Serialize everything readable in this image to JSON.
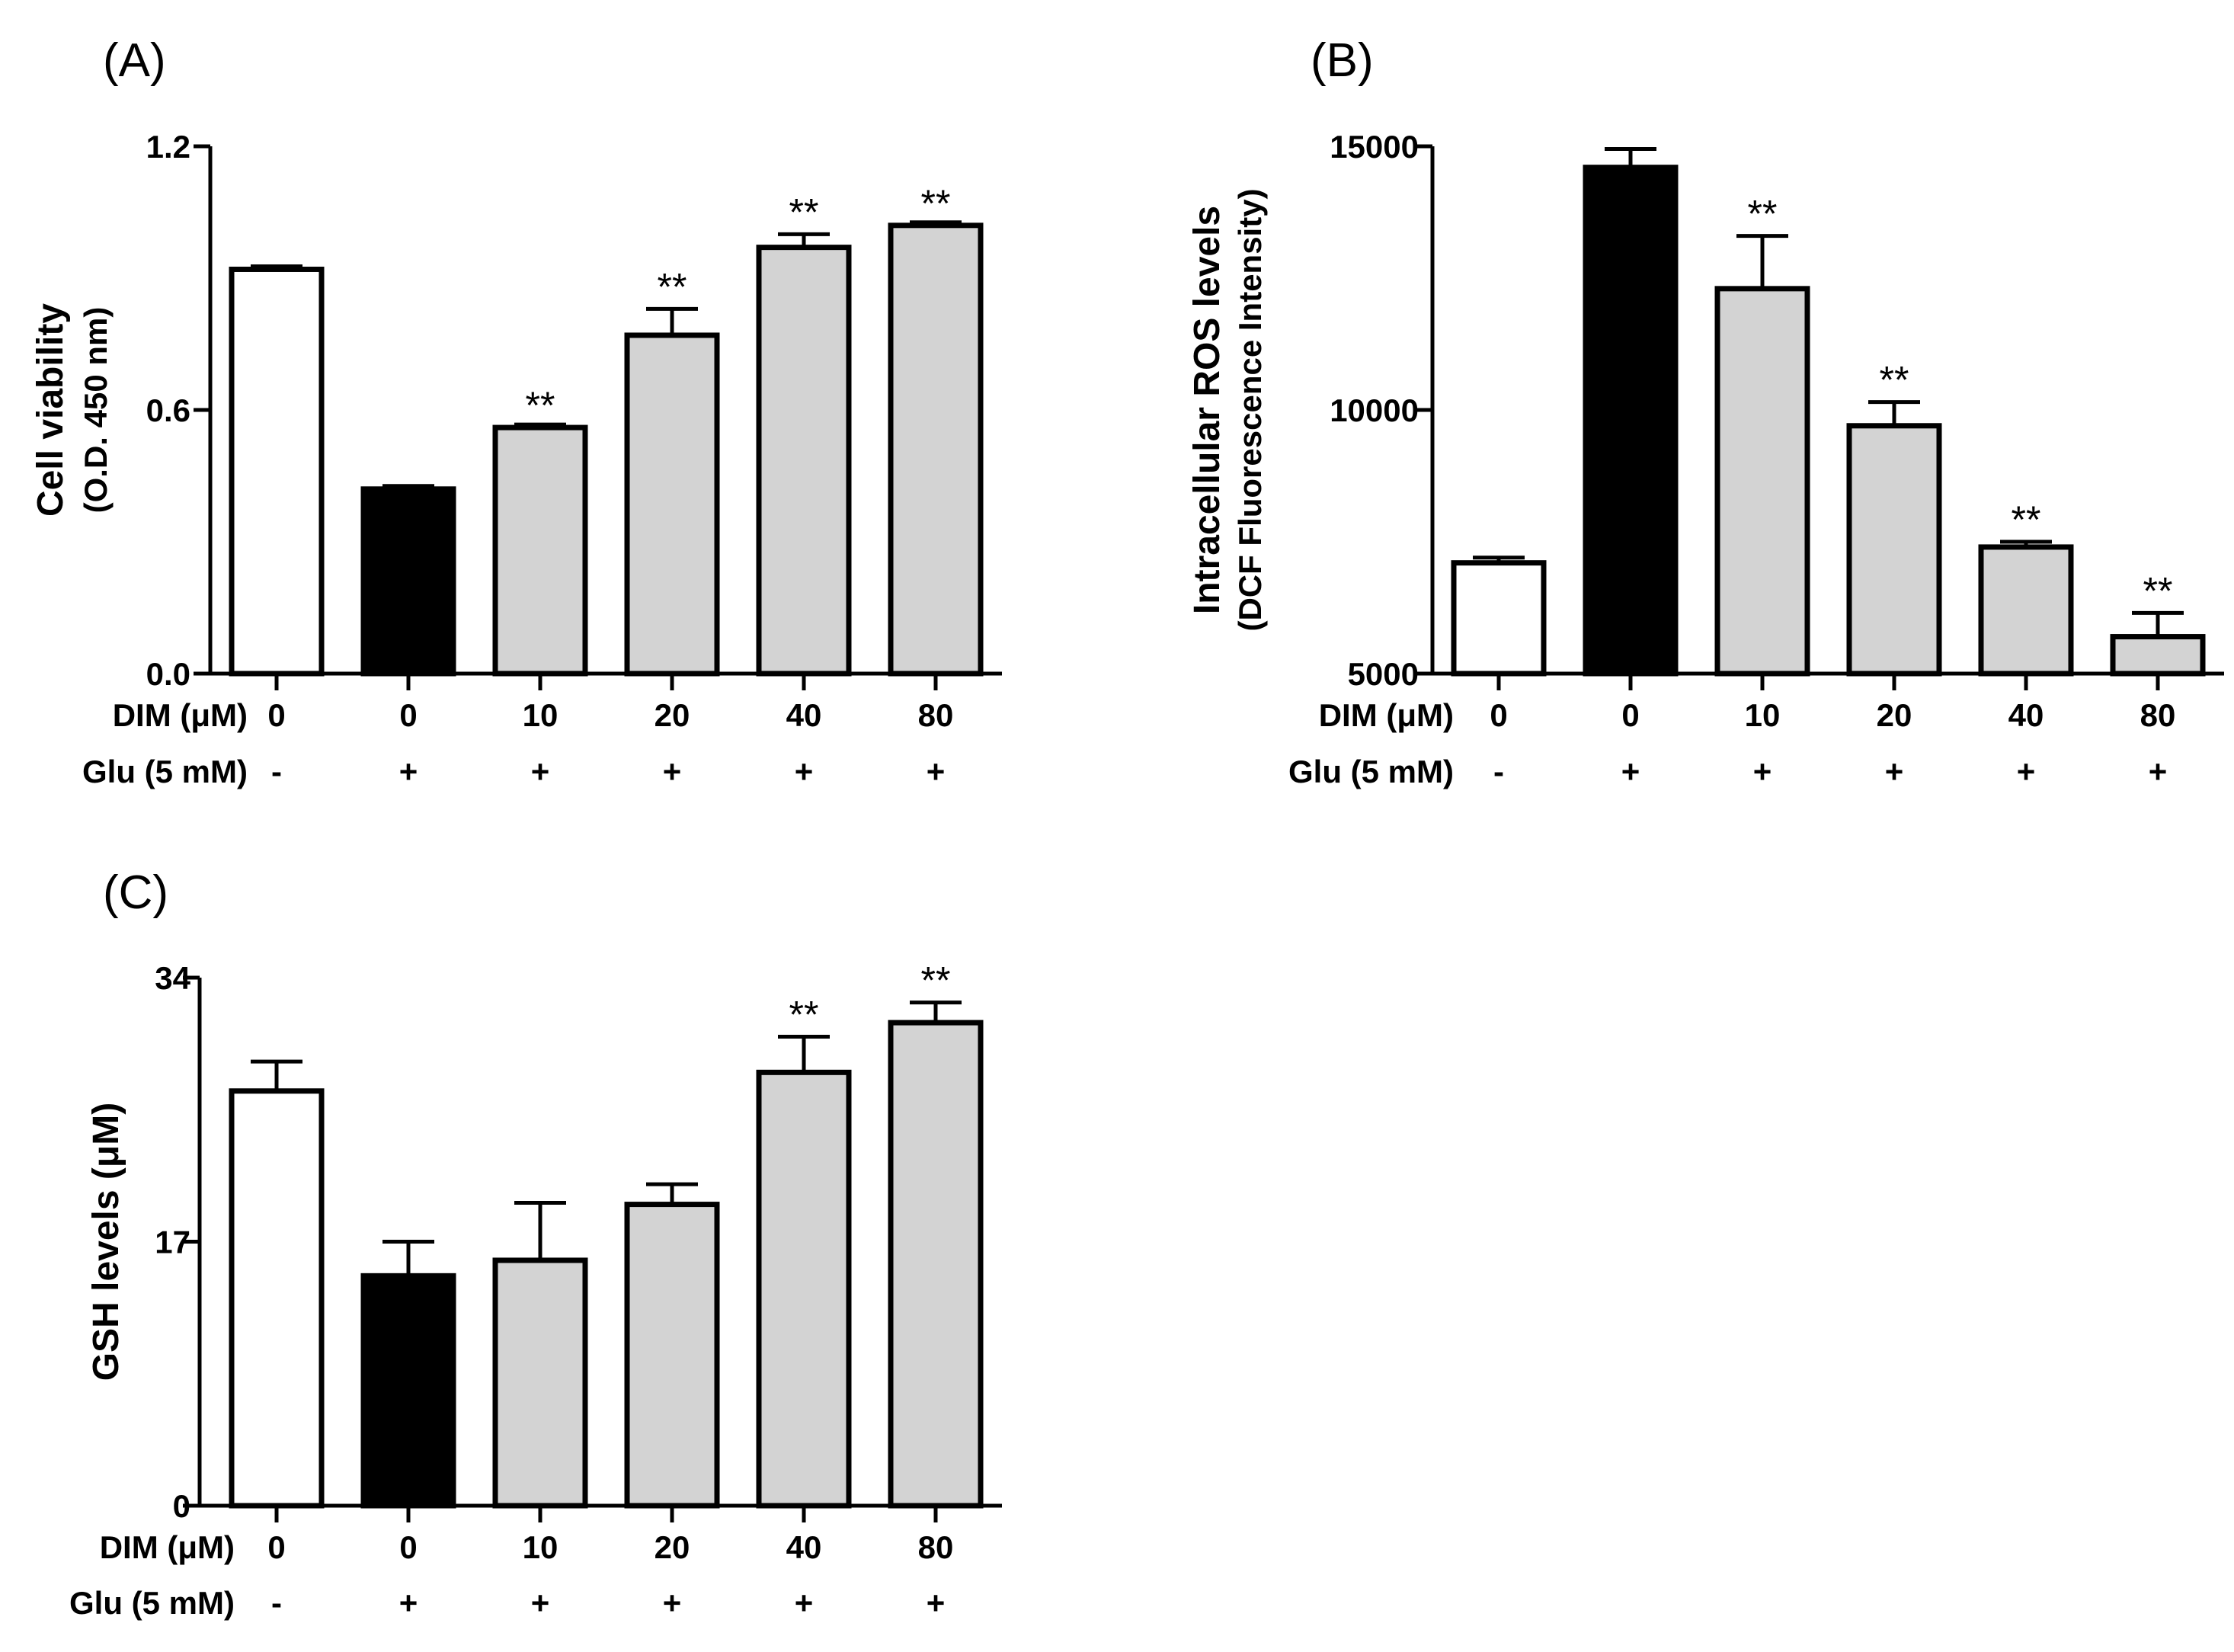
{
  "figure": {
    "row_labels": {
      "dim": "DIM (μM)",
      "glu": "Glu (5 mM)"
    }
  },
  "chart_data": [
    {
      "id": "A",
      "panel_label": "(A)",
      "type": "bar",
      "ylabel": "Cell viability",
      "ylabel_sub": "(O.D. 450 nm)",
      "xlabel": "",
      "ylim": [
        0,
        1.2
      ],
      "yticks": [
        0,
        0.6,
        1.2
      ],
      "ytick_labels": [
        "0.0",
        "0.6",
        "1.2"
      ],
      "categories": [
        "0",
        "0",
        "10",
        "20",
        "40",
        "80"
      ],
      "glu": [
        "-",
        "+",
        "+",
        "+",
        "+",
        "+"
      ],
      "values": [
        0.92,
        0.42,
        0.56,
        0.77,
        0.97,
        1.02
      ],
      "errors": [
        0.0,
        0.0,
        0.0,
        0.06,
        0.03,
        0.0
      ],
      "significance": [
        "",
        "",
        "**",
        "**",
        "**",
        "**"
      ],
      "fills": [
        "#ffffff",
        "#000000",
        "#d3d3d3",
        "#d3d3d3",
        "#d3d3d3",
        "#d3d3d3"
      ]
    },
    {
      "id": "B",
      "panel_label": "(B)",
      "type": "bar",
      "ylabel": "Intracellular ROS levels",
      "ylabel_sub": "(DCF Fluorescence Intensity)",
      "xlabel": "",
      "ylim": [
        5000,
        15000
      ],
      "yticks": [
        5000,
        10000,
        15000
      ],
      "ytick_labels": [
        "5000",
        "10000",
        "15000"
      ],
      "categories": [
        "0",
        "0",
        "10",
        "20",
        "40",
        "80"
      ],
      "glu": [
        "-",
        "+",
        "+",
        "+",
        "+",
        "+"
      ],
      "values": [
        7100,
        14600,
        12300,
        9700,
        7400,
        5700
      ],
      "errors": [
        100,
        350,
        1000,
        450,
        100,
        450
      ],
      "significance": [
        "",
        "",
        "**",
        "**",
        "**",
        "**"
      ],
      "fills": [
        "#ffffff",
        "#000000",
        "#d3d3d3",
        "#d3d3d3",
        "#d3d3d3",
        "#d3d3d3"
      ]
    },
    {
      "id": "C",
      "panel_label": "(C)",
      "type": "bar",
      "ylabel": "GSH levels (μM)",
      "ylabel_sub": "",
      "xlabel": "",
      "ylim": [
        0,
        34
      ],
      "yticks": [
        0,
        17,
        34
      ],
      "ytick_labels": [
        "0",
        "17",
        "34"
      ],
      "categories": [
        "0",
        "0",
        "10",
        "20",
        "40",
        "80"
      ],
      "glu": [
        "-",
        "+",
        "+",
        "+",
        "+",
        "+"
      ],
      "values": [
        26.7,
        14.8,
        15.8,
        19.4,
        27.9,
        31.1
      ],
      "errors": [
        1.9,
        2.2,
        3.7,
        1.3,
        2.3,
        1.3
      ],
      "significance": [
        "",
        "",
        "",
        "",
        "**",
        "**"
      ],
      "fills": [
        "#ffffff",
        "#000000",
        "#d3d3d3",
        "#d3d3d3",
        "#d3d3d3",
        "#d3d3d3"
      ]
    }
  ]
}
